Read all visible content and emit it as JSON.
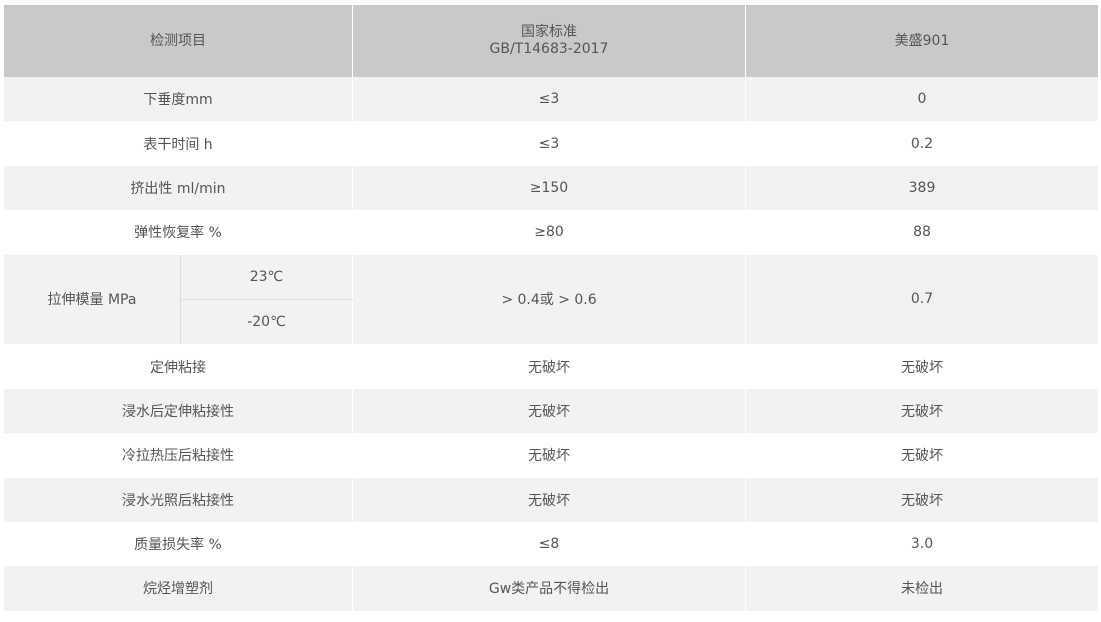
{
  "header": {
    "item": "检测项目",
    "standard": [
      "国家标准",
      "GB/T14683-2017"
    ],
    "result": "美盛901"
  },
  "rows": [
    {
      "item": "下垂度mm",
      "standard": "≤3",
      "result": "0"
    },
    {
      "item": "表干时间 h",
      "standard": "≤3",
      "result": "0.2"
    },
    {
      "item": "挤出性 ml/min",
      "standard": "≥150",
      "result": "389"
    },
    {
      "item": "弹性恢复率 %",
      "standard": "≥80",
      "result": "88"
    },
    {
      "item": "拉伸模量 MPa",
      "conditions": [
        "23℃",
        "-20℃"
      ],
      "standard": "> 0.4或 > 0.6",
      "result": "0.7"
    },
    {
      "item": "定伸粘接",
      "standard": "无破坏",
      "result": "无破坏"
    },
    {
      "item": "浸水后定伸粘接性",
      "standard": "无破坏",
      "result": "无破坏"
    },
    {
      "item": "冷拉热压后粘接性",
      "standard": "无破坏",
      "result": "无破坏"
    },
    {
      "item": "浸水光照后粘接性",
      "standard": "无破坏",
      "result": "无破坏"
    },
    {
      "item": "质量损失率 %",
      "standard": "≤8",
      "result": "3.0"
    },
    {
      "item": "烷烃增塑剂",
      "standard": "Gw类产品不得检出",
      "result": "未检出"
    }
  ]
}
